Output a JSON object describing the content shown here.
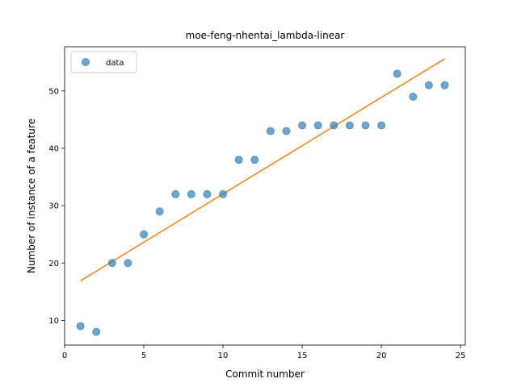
{
  "chart_data": {
    "type": "scatter",
    "title": "moe-feng-nhentai_lambda-linear",
    "xlabel": "Commit number",
    "ylabel": "Number of instance of a feature",
    "xlim": [
      0,
      25.3
    ],
    "ylim": [
      5.7,
      57.7
    ],
    "xticks": [
      0,
      5,
      10,
      15,
      20,
      25
    ],
    "yticks": [
      10,
      20,
      30,
      40,
      50
    ],
    "grid": false,
    "legend_position": "top-left",
    "series": [
      {
        "name": "data",
        "kind": "scatter",
        "color": "#1f77b4",
        "x": [
          1,
          2,
          3,
          4,
          5,
          6,
          7,
          8,
          9,
          10,
          11,
          12,
          13,
          14,
          15,
          16,
          17,
          18,
          19,
          20,
          21,
          22,
          23,
          24
        ],
        "y": [
          9,
          8,
          20,
          20,
          25,
          29,
          32,
          32,
          32,
          32,
          38,
          38,
          43,
          43,
          44,
          44,
          44,
          44,
          44,
          44,
          53,
          49,
          51,
          51
        ]
      },
      {
        "kind": "line",
        "color": "#ff7f0e",
        "x": [
          1,
          24
        ],
        "y": [
          16.9,
          55.6
        ]
      }
    ]
  }
}
